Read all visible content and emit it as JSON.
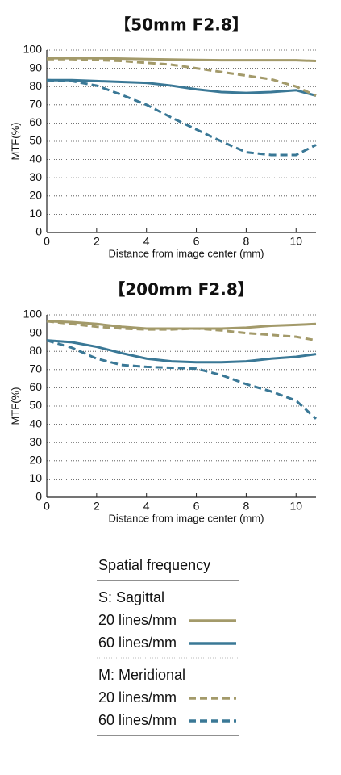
{
  "chart_data": [
    {
      "type": "line",
      "title": "【50mm F2.8】",
      "x_label": "Distance from image center (mm)",
      "y_label": "MTF(%)",
      "x": [
        0,
        1,
        2,
        3,
        4,
        5,
        6,
        7,
        8,
        9,
        10,
        10.8
      ],
      "xlim": [
        0,
        10.8
      ],
      "xticks": [
        0,
        2,
        4,
        6,
        8,
        10
      ],
      "ylim": [
        0,
        100
      ],
      "yticks": [
        0,
        10,
        20,
        30,
        40,
        50,
        60,
        70,
        80,
        90,
        100
      ],
      "grid": true,
      "series": [
        {
          "color": "#a39a6a",
          "style": "solid",
          "values": [
            95.5,
            95.5,
            95.5,
            95.3,
            95,
            94.8,
            94.6,
            94.4,
            94.4,
            94.4,
            94.4,
            94
          ]
        },
        {
          "color": "#3a7896",
          "style": "solid",
          "values": [
            83.5,
            83.5,
            83,
            82.5,
            82,
            80.5,
            78.5,
            77,
            76.5,
            77,
            78,
            75
          ]
        },
        {
          "color": "#a39a6a",
          "style": "dashed",
          "values": [
            95,
            95,
            94.5,
            94,
            93,
            92,
            90,
            88,
            86,
            84,
            80,
            75
          ]
        },
        {
          "color": "#3a7896",
          "style": "dashed",
          "values": [
            83.5,
            83,
            80.5,
            75.5,
            70,
            63,
            56.5,
            50,
            44,
            42.5,
            42.5,
            48
          ]
        }
      ]
    },
    {
      "type": "line",
      "title": "【200mm F2.8】",
      "x_label": "Distance from image center (mm)",
      "y_label": "MTF(%)",
      "x": [
        0,
        1,
        2,
        3,
        4,
        5,
        6,
        7,
        8,
        9,
        10,
        10.8
      ],
      "xlim": [
        0,
        10.8
      ],
      "xticks": [
        0,
        2,
        4,
        6,
        8,
        10
      ],
      "ylim": [
        0,
        100
      ],
      "yticks": [
        0,
        10,
        20,
        30,
        40,
        50,
        60,
        70,
        80,
        90,
        100
      ],
      "grid": true,
      "series": [
        {
          "color": "#a39a6a",
          "style": "solid",
          "values": [
            96.5,
            96,
            95,
            93.5,
            92.5,
            92.5,
            92.5,
            92.5,
            93,
            94,
            94.5,
            95
          ]
        },
        {
          "color": "#3a7896",
          "style": "solid",
          "values": [
            86,
            85,
            82.5,
            79,
            76,
            74.5,
            74,
            74,
            74.5,
            76,
            77,
            78.5
          ]
        },
        {
          "color": "#a39a6a",
          "style": "dashed",
          "values": [
            96.5,
            95,
            93.5,
            92.5,
            92,
            92,
            92.5,
            91.5,
            90,
            89,
            88,
            86
          ]
        },
        {
          "color": "#3a7896",
          "style": "dashed",
          "values": [
            86,
            82,
            76,
            72.5,
            71.5,
            71,
            70.5,
            67,
            62,
            58,
            53,
            43
          ]
        }
      ]
    }
  ],
  "legend": {
    "title": "Spatial frequency",
    "groups": [
      {
        "heading": "S: Sagittal",
        "entries": [
          {
            "label": "20 lines/mm",
            "color": "#a39a6a",
            "style": "solid"
          },
          {
            "label": "60 lines/mm",
            "color": "#3a7896",
            "style": "solid"
          }
        ]
      },
      {
        "heading": "M: Meridional",
        "entries": [
          {
            "label": "20 lines/mm",
            "color": "#a39a6a",
            "style": "dashed"
          },
          {
            "label": "60 lines/mm",
            "color": "#3a7896",
            "style": "dashed"
          }
        ]
      }
    ]
  }
}
